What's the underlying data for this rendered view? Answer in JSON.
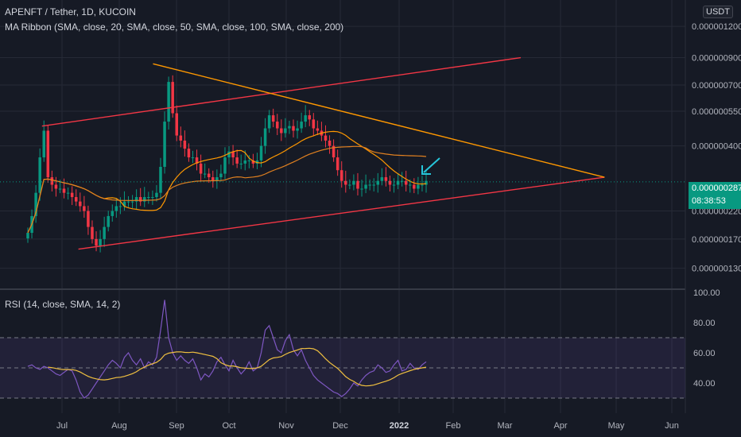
{
  "header": {
    "symbol_line": "APENFT / Tether, 1D, KUCOIN",
    "ma_line": "MA Ribbon (SMA, close, 20, SMA, close, 50, SMA, close, 100, SMA, close, 200)",
    "rsi_line": "RSI (14, close, SMA, 14, 2)",
    "currency": "USDT"
  },
  "price_tag": {
    "price": "0.0000002875",
    "countdown": "08:38:53"
  },
  "colors": {
    "background": "#161a25",
    "grid": "#262a36",
    "up": "#089981",
    "down": "#f23645",
    "channel": "#f23645",
    "wedge": "#ff9800",
    "ma_fast": "#ff9800",
    "ma_slow": "#e08020",
    "rsi": "#7e57c2",
    "rsi_ma": "#f0c040",
    "arrow": "#26c6da",
    "axis_text": "#b2b5be"
  },
  "chart_data": [
    {
      "type": "candlestick",
      "name": "APENFT / Tether",
      "scale": "log",
      "x_axis_labels": [
        "Jul",
        "Aug",
        "Sep",
        "Oct",
        "Nov",
        "Dec",
        "2022",
        "Feb",
        "Mar",
        "Apr",
        "May",
        "Jun"
      ],
      "y_axis_labels": [
        "0.0000012000",
        "0.0000009000",
        "0.0000007000",
        "0.0000005500",
        "0.0000004000",
        "0.0000002200",
        "0.0000001700",
        "0.0000001300"
      ],
      "last_price": "0.0000002875",
      "closes_approx": [
        1.8e-07,
        2.1e-07,
        2.6e-07,
        3.6e-07,
        4.6e-07,
        3e-07,
        2.8e-07,
        2.7e-07,
        2.7e-07,
        2.6e-07,
        2.6e-07,
        2.5e-07,
        2.4e-07,
        2.3e-07,
        2.2e-07,
        1.9e-07,
        1.7e-07,
        1.6e-07,
        1.7e-07,
        1.9e-07,
        2.1e-07,
        2.2e-07,
        2.3e-07,
        2.3e-07,
        2.4e-07,
        2.4e-07,
        2.4e-07,
        2.5e-07,
        2.4e-07,
        2.5e-07,
        2.5e-07,
        2.5e-07,
        2.6e-07,
        3.3e-07,
        5e-07,
        7.2e-07,
        5.4e-07,
        4.4e-07,
        4.2e-07,
        3.9e-07,
        3.6e-07,
        3.6e-07,
        3.4e-07,
        3.1e-07,
        3.1e-07,
        3e-07,
        2.9e-07,
        3e-07,
        3.1e-07,
        3.6e-07,
        3.8e-07,
        3.6e-07,
        3.4e-07,
        3.4e-07,
        3.5e-07,
        3.5e-07,
        3.4e-07,
        3.5e-07,
        4e-07,
        4.7e-07,
        5.3e-07,
        5e-07,
        4.7e-07,
        4.5e-07,
        4.7e-07,
        4.8e-07,
        4.6e-07,
        4.7e-07,
        5e-07,
        5.3e-07,
        5.1e-07,
        4.7e-07,
        4.6e-07,
        4.4e-07,
        4.2e-07,
        4e-07,
        3.6e-07,
        3.2e-07,
        2.9e-07,
        2.8e-07,
        2.8e-07,
        2.9e-07,
        2.7e-07,
        2.7e-07,
        2.8e-07,
        2.8e-07,
        2.8e-07,
        2.9e-07,
        3e-07,
        2.9e-07,
        2.8e-07,
        2.8e-07,
        2.9e-07,
        2.9e-07,
        2.8e-07,
        2.8e-07,
        2.7e-07,
        2.8e-07,
        2.8e-07,
        2.9e-07
      ],
      "ma_ribbon": {
        "periods": [
          20,
          50,
          100,
          200
        ],
        "source": "close",
        "method": "SMA"
      },
      "drawings": [
        {
          "kind": "upper-channel-line",
          "start": [
            "2021-06-20",
            4.8e-07
          ],
          "end": [
            "2022-03-10",
            9e-07
          ]
        },
        {
          "kind": "lower-channel-line",
          "start": [
            "2021-07-10",
            1.55e-07
          ],
          "end": [
            "2022-04-25",
            3e-07
          ]
        },
        {
          "kind": "wedge-upper-line",
          "start": [
            "2021-08-20",
            8.5e-07
          ],
          "end": [
            "2022-04-25",
            3e-07
          ]
        }
      ]
    },
    {
      "type": "line",
      "name": "RSI",
      "y_axis_labels": [
        "100.00",
        "80.00",
        "60.00",
        "40.00"
      ],
      "ylim": [
        20,
        100
      ],
      "bands": {
        "upper": 70,
        "middle": 50,
        "lower": 30
      },
      "rsi_values_approx": [
        51,
        52,
        50,
        49,
        51,
        50,
        48,
        46,
        45,
        47,
        49,
        48,
        42,
        34,
        30,
        32,
        36,
        40,
        44,
        48,
        52,
        55,
        53,
        50,
        57,
        60,
        55,
        52,
        56,
        50,
        54,
        52,
        57,
        75,
        95,
        70,
        60,
        55,
        58,
        55,
        53,
        56,
        50,
        42,
        46,
        44,
        48,
        54,
        57,
        52,
        48,
        55,
        50,
        46,
        49,
        54,
        48,
        50,
        60,
        75,
        78,
        70,
        62,
        60,
        68,
        72,
        62,
        58,
        62,
        55,
        50,
        45,
        42,
        40,
        38,
        36,
        34,
        33,
        31,
        33,
        36,
        40,
        38,
        42,
        45,
        47,
        48,
        52,
        50,
        47,
        48,
        52,
        55,
        48,
        49,
        53,
        50,
        49,
        52,
        54
      ]
    }
  ]
}
